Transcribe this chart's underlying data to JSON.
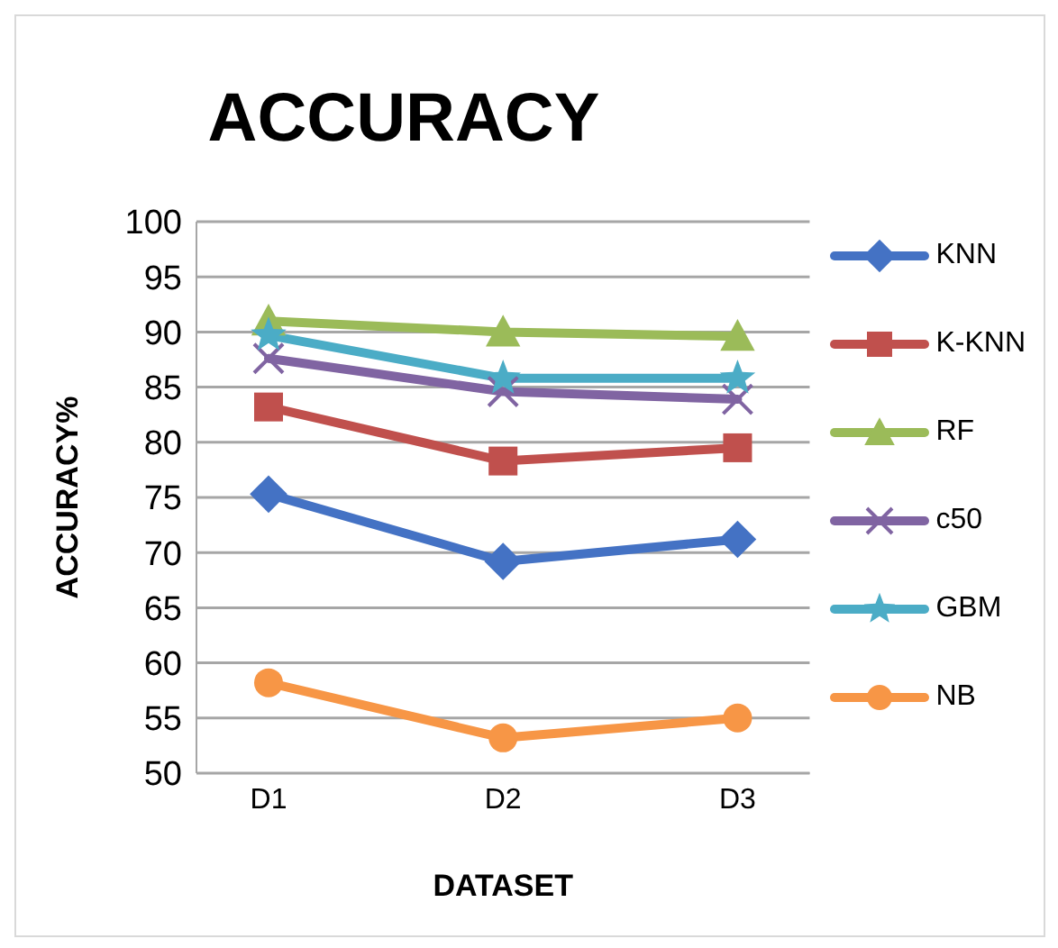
{
  "chart_data": {
    "type": "line",
    "title": "ACCURACY",
    "xlabel": "DATASET",
    "ylabel": "ACCURACY%",
    "categories": [
      "D1",
      "D2",
      "D3"
    ],
    "series": [
      {
        "name": "KNN",
        "color": "#4472c4",
        "marker": "diamond",
        "values": [
          75.3,
          69.2,
          71.2
        ]
      },
      {
        "name": "K-KNN",
        "color": "#c0504d",
        "marker": "square",
        "values": [
          83.2,
          78.3,
          79.5
        ]
      },
      {
        "name": "RF",
        "color": "#9bbb59",
        "marker": "triangle",
        "values": [
          91,
          90,
          89.6
        ]
      },
      {
        "name": "c50",
        "color": "#8064a2",
        "marker": "cross",
        "values": [
          87.6,
          84.6,
          83.9
        ]
      },
      {
        "name": "GBM",
        "color": "#4bacc6",
        "marker": "star",
        "values": [
          89.7,
          85.8,
          85.8
        ]
      },
      {
        "name": "NB",
        "color": "#f79646",
        "marker": "circle",
        "values": [
          58.2,
          53.2,
          55
        ]
      }
    ],
    "ylim": [
      50,
      100
    ],
    "yticks": [
      50,
      55,
      60,
      65,
      70,
      75,
      80,
      85,
      90,
      95,
      100
    ],
    "grid": "y",
    "legend": "right",
    "line_style": "solid"
  }
}
